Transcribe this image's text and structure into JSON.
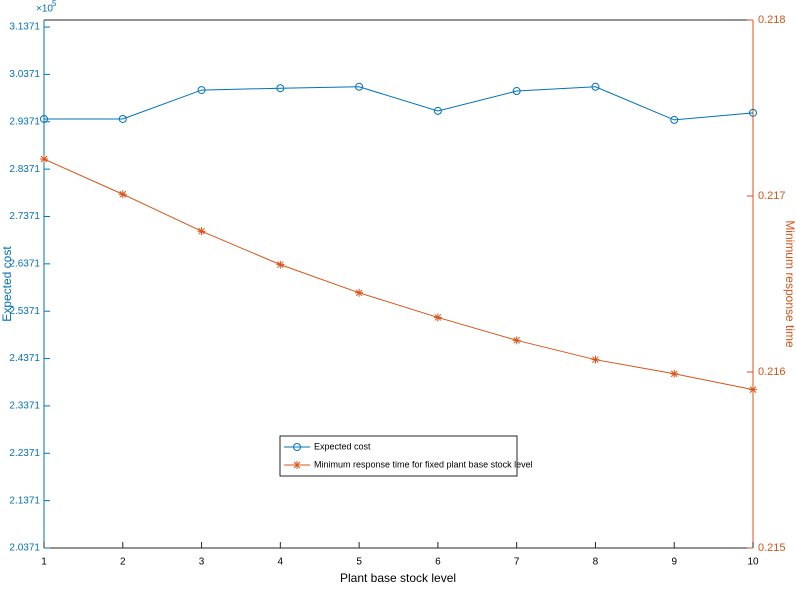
{
  "chart_data": {
    "type": "line",
    "xlabel": "Plant base stock level",
    "ylabel": "Expected cost",
    "y2label": "Minimum response time",
    "y_exponent": "×10",
    "y_exponent_power": "5",
    "x": [
      1,
      2,
      3,
      4,
      5,
      6,
      7,
      8,
      9,
      10
    ],
    "xlim": [
      1,
      10
    ],
    "xticks": [
      1,
      2,
      3,
      4,
      5,
      6,
      7,
      8,
      9,
      10
    ],
    "ylim": [
      2.0371,
      3.152
    ],
    "yticks": [
      2.0371,
      2.1371,
      2.2371,
      2.3371,
      2.4371,
      2.5371,
      2.6371,
      2.7371,
      2.8371,
      2.9371,
      3.0371,
      3.1371
    ],
    "y2lim": [
      0.215,
      0.218
    ],
    "y2ticks": [
      0.215,
      0.216,
      0.217,
      0.218
    ],
    "left_color": "#0072BD",
    "right_color": "#D95319",
    "legend": "south",
    "series": [
      {
        "name": "Expected cost",
        "color": "#0072BD",
        "marker": "circle",
        "values": [
          2.943,
          2.943,
          3.004,
          3.008,
          3.011,
          2.96,
          3.002,
          3.011,
          2.941,
          2.956
        ]
      },
      {
        "name": "Minimum response time for fixed plant base stock level",
        "color": "#D95319",
        "marker": "asterisk",
        "axis": "y2",
        "values": [
          0.21721,
          0.21701,
          0.2168,
          0.21661,
          0.21645,
          0.21631,
          0.21618,
          0.21607,
          0.21599,
          0.2159
        ]
      }
    ]
  }
}
